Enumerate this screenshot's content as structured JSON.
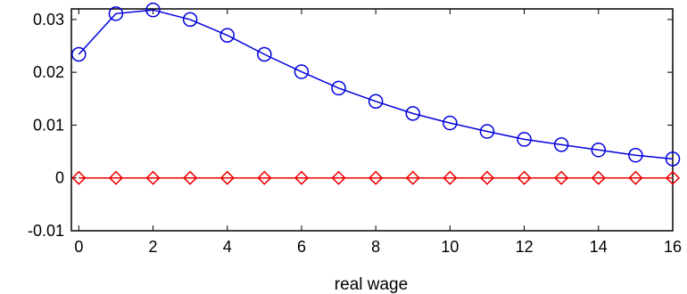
{
  "chart_data": {
    "type": "line",
    "title": "",
    "xlabel": "real wage",
    "ylabel": "",
    "xlim": [
      -0.2,
      16
    ],
    "ylim": [
      -0.01,
      0.032
    ],
    "xticks": [
      0,
      2,
      4,
      6,
      8,
      10,
      12,
      14,
      16
    ],
    "yticks": [
      -0.01,
      0,
      0.01,
      0.02,
      0.03
    ],
    "ytick_labels": [
      "-0.01",
      "0",
      "0.01",
      "0.02",
      "0.03"
    ],
    "xtick_labels": [
      "0",
      "2",
      "4",
      "6",
      "8",
      "10",
      "12",
      "14",
      "16"
    ],
    "grid": false,
    "x": [
      0,
      1,
      2,
      3,
      4,
      5,
      6,
      7,
      8,
      9,
      10,
      11,
      12,
      13,
      14,
      15,
      16
    ],
    "series": [
      {
        "marker": "circle",
        "color": "#0000dd",
        "values": [
          0.0234,
          0.0311,
          0.0318,
          0.03,
          0.027,
          0.0234,
          0.0201,
          0.017,
          0.0145,
          0.0122,
          0.0104,
          0.0088,
          0.0073,
          0.0063,
          0.0053,
          0.0043,
          0.0036
        ]
      },
      {
        "marker": "diamond",
        "color": "#ee0000",
        "values": [
          0,
          0,
          0,
          0,
          0,
          0,
          0,
          0,
          0,
          0,
          0,
          0,
          0,
          0,
          0,
          0,
          0
        ]
      }
    ]
  }
}
